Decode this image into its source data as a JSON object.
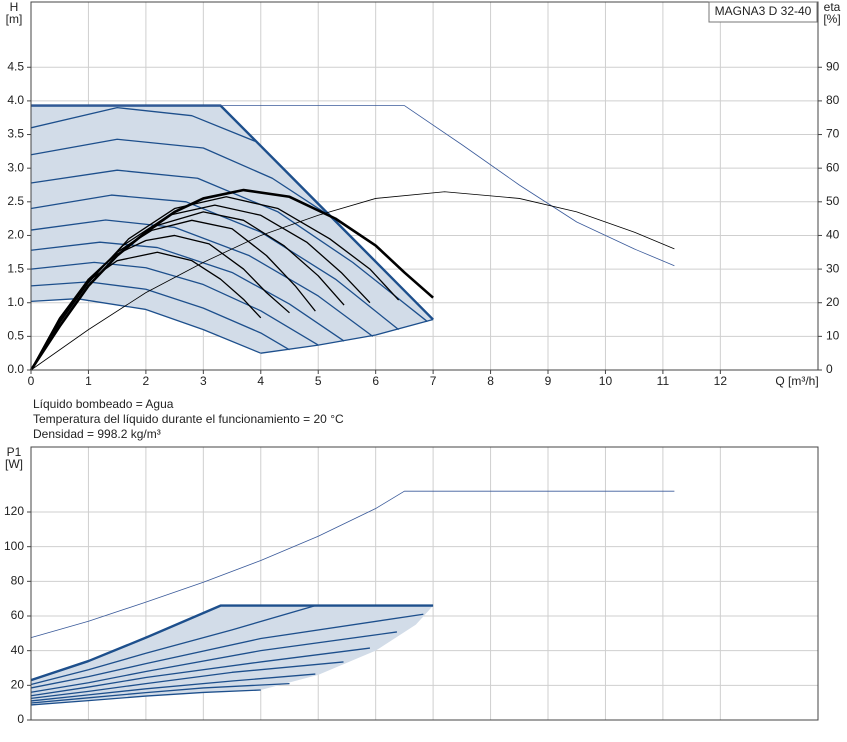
{
  "chart_data": [
    {
      "type": "line",
      "title": "MAGNA3 D 32-40",
      "ylabel": "H",
      "yunit": "[m]",
      "y2label": "eta",
      "y2unit": "[%]",
      "xlabel": "Q [m³/h]",
      "annotations": [
        "Líquido bombeado = Agua",
        "Temperatura del líquido durante el funcionamiento = 20 °C",
        "Densidad = 998.2 kg/m³"
      ],
      "xlim": [
        0,
        13.7
      ],
      "xticks": [
        0,
        1,
        2,
        3,
        4,
        5,
        6,
        7,
        8,
        9,
        10,
        11,
        12
      ],
      "show_xtick_labels": true,
      "ylim": [
        0,
        5.47
      ],
      "yticks": [
        {
          "value": 0,
          "label": "0.0"
        },
        0.5,
        {
          "value": 1,
          "label": "1.0"
        },
        1.5,
        {
          "value": 2,
          "label": "2.0"
        },
        2.5,
        {
          "value": 3,
          "label": "3.0"
        },
        3.5,
        {
          "value": 4,
          "label": "4.0"
        },
        4.5
      ],
      "y2lim": [
        0,
        109.4
      ],
      "y2ticks": [
        0,
        10,
        20,
        30,
        40,
        50,
        60,
        70,
        80,
        90
      ],
      "grid": true,
      "regions": [
        {
          "color": "#d2dce8",
          "x": [
            0,
            3.3,
            4.5,
            5.5,
            7.0,
            6.0,
            5.0,
            4.0,
            3.0,
            2.0,
            0.8,
            0
          ],
          "values": [
            3.93,
            3.93,
            2.9,
            2.04,
            0.75,
            0.52,
            0.37,
            0.25,
            0.6,
            0.9,
            1.06,
            1.02
          ]
        }
      ],
      "series": [
        {
          "color": "#1d4f8c",
          "width": 1.3,
          "x": [
            0,
            0.8,
            2,
            3,
            4
          ],
          "values": [
            1.02,
            1.06,
            0.9,
            0.6,
            0.25
          ]
        },
        {
          "color": "#1d4f8c",
          "width": 1.3,
          "x": [
            0,
            1,
            2,
            3,
            4,
            4.5
          ],
          "values": [
            1.25,
            1.31,
            1.2,
            0.92,
            0.55,
            0.3
          ]
        },
        {
          "color": "#1d4f8c",
          "width": 1.3,
          "x": [
            0,
            1.1,
            2,
            3,
            4,
            5
          ],
          "values": [
            1.5,
            1.6,
            1.52,
            1.27,
            0.88,
            0.37
          ]
        },
        {
          "color": "#1d4f8c",
          "width": 1.3,
          "x": [
            0,
            1.2,
            2.2,
            3.5,
            4.5,
            5.45
          ],
          "values": [
            1.78,
            1.9,
            1.82,
            1.45,
            0.98,
            0.43
          ]
        },
        {
          "color": "#1d4f8c",
          "width": 1.3,
          "x": [
            0,
            1.3,
            2.5,
            3.8,
            5,
            5.95
          ],
          "values": [
            2.08,
            2.23,
            2.12,
            1.7,
            1.1,
            0.5
          ]
        },
        {
          "color": "#1d4f8c",
          "width": 1.3,
          "x": [
            0,
            1.4,
            2.7,
            4,
            5.3,
            6.4
          ],
          "values": [
            2.4,
            2.6,
            2.5,
            2.05,
            1.35,
            0.6
          ]
        },
        {
          "color": "#1d4f8c",
          "width": 1.3,
          "x": [
            0,
            1.5,
            2.9,
            4.3,
            5.6,
            6.9
          ],
          "values": [
            2.78,
            2.97,
            2.85,
            2.35,
            1.6,
            0.72
          ]
        },
        {
          "color": "#1d4f8c",
          "width": 1.3,
          "x": [
            0,
            1.5,
            3,
            4.2,
            5.2
          ],
          "values": [
            3.2,
            3.43,
            3.3,
            2.85,
            2.29
          ]
        },
        {
          "color": "#1d4f8c",
          "width": 1.3,
          "x": [
            0,
            1.5,
            2.8,
            3.9
          ],
          "values": [
            3.6,
            3.9,
            3.78,
            3.4
          ]
        },
        {
          "color": "#1d4f8c",
          "width": 2.4,
          "x": [
            0,
            3.3,
            4.5,
            5.5,
            7.0
          ],
          "values": [
            3.93,
            3.93,
            2.9,
            2.04,
            0.75
          ]
        },
        {
          "color": "#1d4f8c",
          "width": 1.3,
          "x": [
            4,
            5,
            6,
            7
          ],
          "values": [
            0.25,
            0.37,
            0.52,
            0.75
          ]
        },
        {
          "color": "#3a5a9a",
          "width": 0.8,
          "x": [
            0,
            6.5,
            7.5,
            8.5,
            9.5,
            10.5,
            11.2
          ],
          "values": [
            3.93,
            3.93,
            3.35,
            2.75,
            2.2,
            1.8,
            1.55
          ]
        },
        {
          "color": "#000000",
          "width": 0.8,
          "axis": "y2",
          "x": [
            0,
            1,
            2,
            3,
            4,
            5,
            6,
            7.2,
            8.5,
            9.5,
            10.5,
            11.2
          ],
          "values": [
            0,
            12,
            23,
            32,
            40,
            46,
            51,
            53,
            51,
            47,
            41,
            36
          ]
        },
        {
          "color": "#000000",
          "width": 1.3,
          "axis": "y2",
          "x": [
            0,
            0.5,
            1,
            1.5,
            2.2,
            2.8,
            3.3,
            3.7,
            4
          ],
          "values": [
            0,
            15.5,
            26.5,
            32.5,
            35,
            32.5,
            27,
            21,
            15.5
          ]
        },
        {
          "color": "#000000",
          "width": 1.3,
          "axis": "y2",
          "x": [
            0,
            0.5,
            1,
            1.5,
            2,
            2.5,
            3.1,
            3.7,
            4.1,
            4.5
          ],
          "values": [
            0,
            15.5,
            27,
            34.5,
            38.5,
            40,
            37.5,
            30,
            23,
            17
          ]
        },
        {
          "color": "#000000",
          "width": 1.3,
          "axis": "y2",
          "x": [
            0,
            0.5,
            1,
            1.5,
            2.1,
            2.8,
            3.5,
            4.1,
            4.6,
            4.95
          ],
          "values": [
            0,
            15,
            27,
            35,
            41.5,
            44.5,
            42,
            34,
            25,
            17.5
          ]
        },
        {
          "color": "#000000",
          "width": 1.3,
          "axis": "y2",
          "x": [
            0,
            0.5,
            1,
            1.5,
            2.2,
            3,
            3.7,
            4.4,
            5,
            5.45
          ],
          "values": [
            0,
            15,
            26.5,
            35,
            43,
            47,
            44.5,
            37,
            28,
            19.3
          ]
        },
        {
          "color": "#000000",
          "width": 1.3,
          "axis": "y2",
          "x": [
            0,
            0.5,
            1,
            1.6,
            2.4,
            3.2,
            4,
            4.8,
            5.4,
            5.9
          ],
          "values": [
            0,
            14.5,
            26,
            37,
            46,
            49,
            46,
            38,
            29,
            20
          ]
        },
        {
          "color": "#000000",
          "width": 1.3,
          "axis": "y2",
          "x": [
            0,
            0.5,
            1,
            1.7,
            2.5,
            3.4,
            4.3,
            5.2,
            5.9,
            6.4
          ],
          "values": [
            0,
            14,
            26,
            39,
            48,
            51.5,
            48,
            39,
            30,
            20.8
          ]
        },
        {
          "color": "#000000",
          "width": 2.6,
          "axis": "y2",
          "x": [
            0,
            0.5,
            1,
            1.5,
            2,
            2.5,
            3,
            3.7,
            4.5,
            5.3,
            6,
            6.5,
            7
          ],
          "values": [
            0,
            13,
            25,
            34,
            41,
            47,
            51,
            53.5,
            51.5,
            45,
            37,
            29,
            21.5
          ]
        }
      ]
    },
    {
      "type": "line",
      "ylabel": "P1",
      "yunit": "[W]",
      "xlim": [
        0,
        13.7
      ],
      "xticks": [
        0,
        1,
        2,
        3,
        4,
        5,
        6,
        7,
        8,
        9,
        10,
        11,
        12
      ],
      "show_xtick_labels": false,
      "ylim": [
        0,
        157.5
      ],
      "yticks": [
        0,
        20,
        40,
        60,
        80,
        100,
        120
      ],
      "grid": true,
      "regions": [
        {
          "color": "#d2dce8",
          "x": [
            0,
            1,
            2,
            3.3,
            7,
            6.7,
            6,
            5,
            4,
            3,
            2,
            1,
            0
          ],
          "values": [
            23,
            34,
            47.5,
            66,
            66,
            55,
            40,
            26,
            17.3,
            15.9,
            13.8,
            11.2,
            8.7
          ]
        }
      ],
      "series": [
        {
          "color": "#1d4f8c",
          "width": 1.3,
          "x": [
            0,
            1,
            2,
            3,
            4
          ],
          "values": [
            8.7,
            11.2,
            13.8,
            15.9,
            17.3
          ]
        },
        {
          "color": "#1d4f8c",
          "width": 1.3,
          "x": [
            0,
            1,
            2,
            3,
            4.5
          ],
          "values": [
            9.8,
            12.8,
            15.8,
            18.5,
            21
          ]
        },
        {
          "color": "#1d4f8c",
          "width": 1.3,
          "x": [
            0,
            1,
            2,
            3.5,
            4.95
          ],
          "values": [
            11,
            14.5,
            18,
            22.5,
            26.5
          ]
        },
        {
          "color": "#1d4f8c",
          "width": 1.3,
          "x": [
            0,
            1,
            2,
            3.5,
            5.44
          ],
          "values": [
            12.5,
            16.5,
            21,
            27.5,
            33.5
          ]
        },
        {
          "color": "#1d4f8c",
          "width": 1.3,
          "x": [
            0,
            1,
            2,
            4,
            5.9
          ],
          "values": [
            14,
            19,
            24.5,
            33.5,
            41.5
          ]
        },
        {
          "color": "#1d4f8c",
          "width": 1.3,
          "x": [
            0,
            1,
            2,
            4,
            6.37
          ],
          "values": [
            16,
            21.5,
            28,
            40,
            50.8
          ]
        },
        {
          "color": "#1d4f8c",
          "width": 1.3,
          "x": [
            0,
            1,
            2,
            4,
            6.83
          ],
          "values": [
            18.5,
            25,
            32.5,
            47,
            61
          ]
        },
        {
          "color": "#1d4f8c",
          "width": 1.3,
          "x": [
            0,
            1,
            2,
            3.5,
            4.95
          ],
          "values": [
            20.5,
            29,
            38.5,
            52,
            66
          ]
        },
        {
          "color": "#1d4f8c",
          "width": 2.4,
          "x": [
            0,
            1,
            2,
            3.3,
            7
          ],
          "values": [
            23,
            34,
            47.5,
            66,
            66
          ]
        },
        {
          "color": "#3a5a9a",
          "width": 0.8,
          "x": [
            0,
            1,
            2,
            3,
            4,
            5,
            6,
            6.5,
            11.2
          ],
          "values": [
            47.5,
            57,
            68,
            79.5,
            92,
            106,
            122,
            132,
            132
          ]
        }
      ]
    }
  ]
}
